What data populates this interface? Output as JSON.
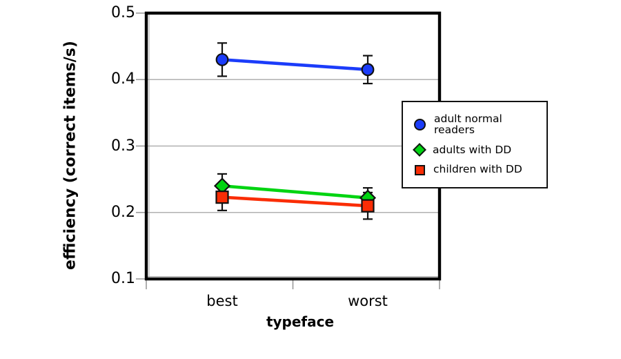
{
  "figure": {
    "background": "#ffffff"
  },
  "chart_data": {
    "type": "line",
    "title": "",
    "xlabel": "typeface",
    "ylabel": "efficiency (correct items/s)",
    "categories": [
      "best",
      "worst"
    ],
    "y_ticks": [
      0.5,
      0.4,
      0.3,
      0.2,
      0.1
    ],
    "ylim": [
      0.1,
      0.5
    ],
    "grid": true,
    "grid_color": "#b0b0b0",
    "axis_tick_color": "#999999",
    "frame_color": "#000000",
    "error_bar_color": "#111111",
    "legend_position": "right, overlapping plot right edge",
    "series": [
      {
        "name": "adult normal readers",
        "marker": "circle",
        "color": "#1b3cfa",
        "values": [
          0.43,
          0.415
        ],
        "error": [
          0.025,
          0.021
        ]
      },
      {
        "name": "adults with DD",
        "marker": "diamond",
        "color": "#00d411",
        "values": [
          0.24,
          0.222
        ],
        "error": [
          0.018,
          0.015
        ]
      },
      {
        "name": "children with DD",
        "marker": "square",
        "color": "#fa2d05",
        "values": [
          0.223,
          0.21
        ],
        "error": [
          0.02,
          0.02
        ]
      }
    ]
  }
}
